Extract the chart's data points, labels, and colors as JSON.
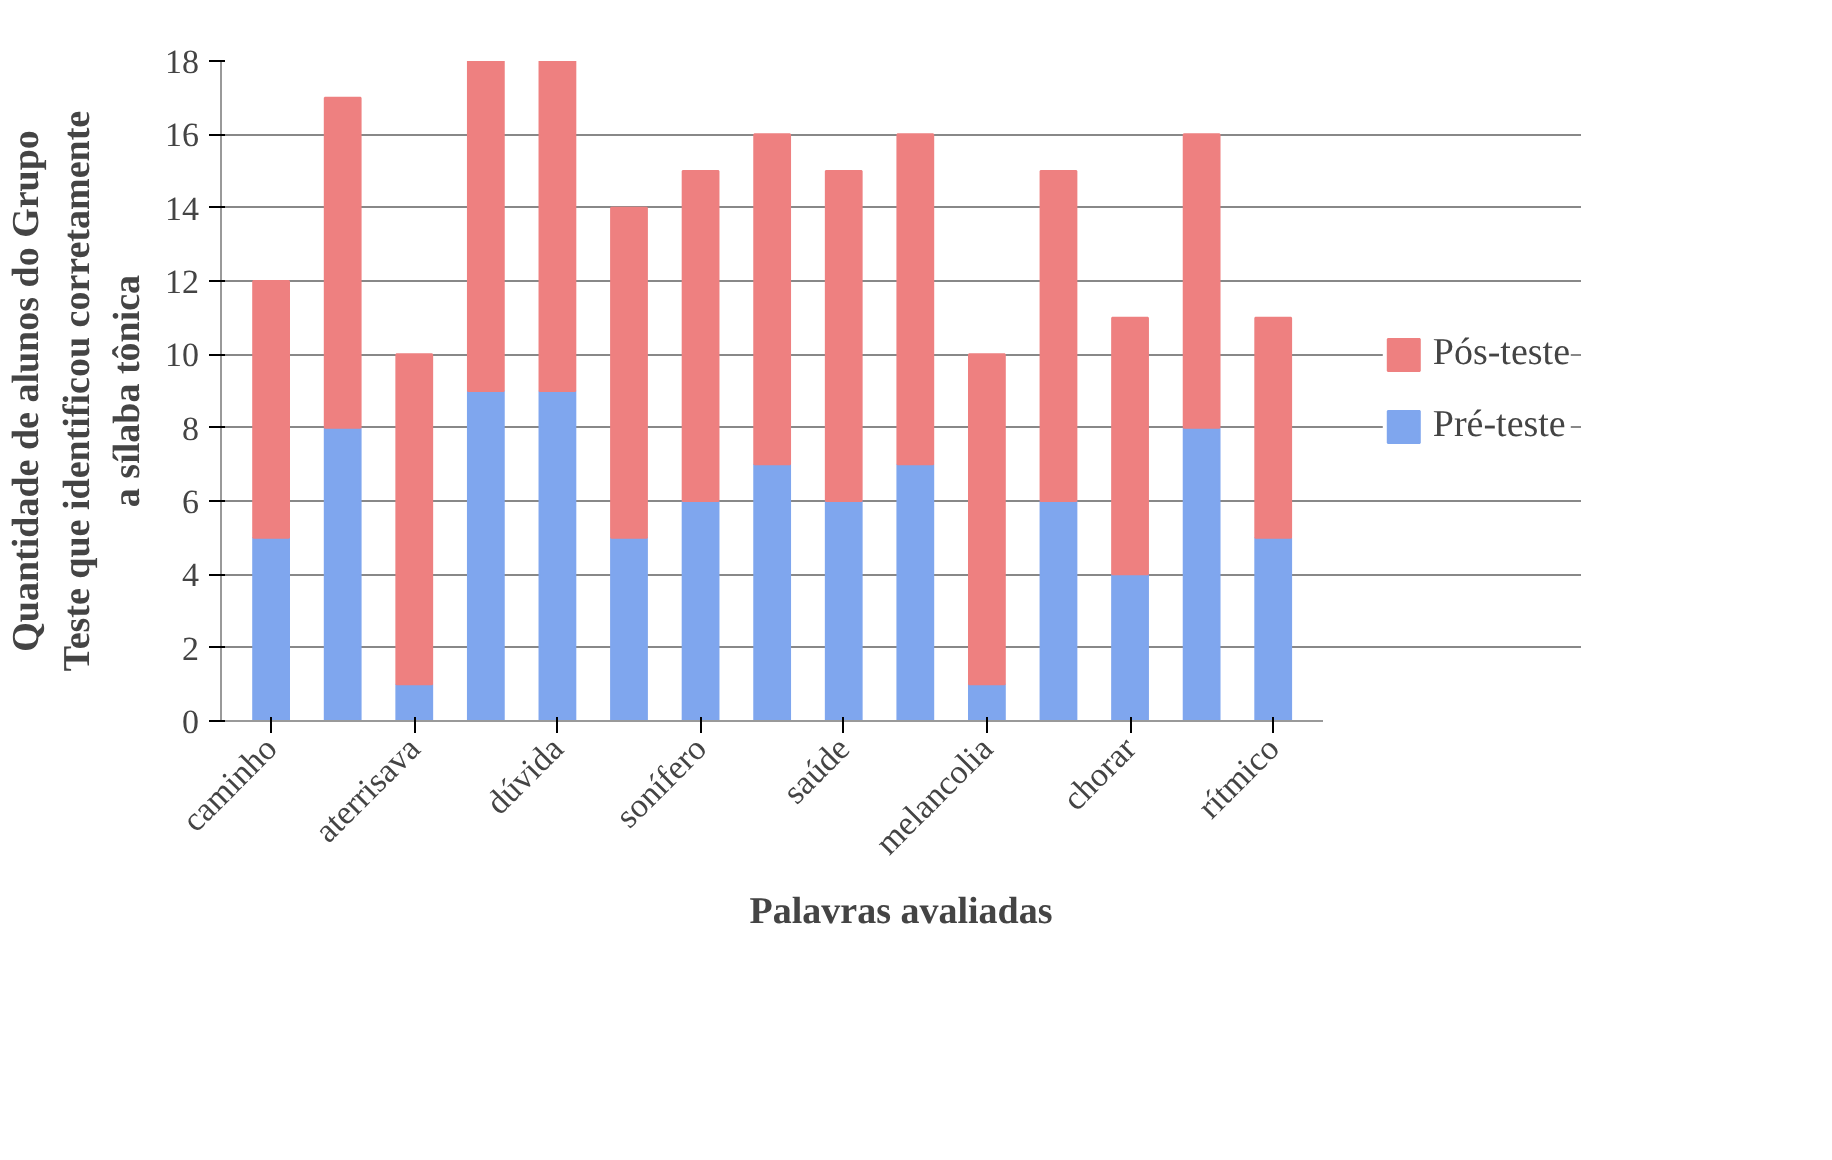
{
  "chart_data": {
    "type": "bar",
    "stacked": true,
    "xlabel": "Palavras avaliadas",
    "ylabel": "Quantidade de alunos do Grupo\nTeste que identificou corretamente\na sílaba tônica",
    "categories": [
      "caminho",
      null,
      "aterrisava",
      null,
      "dúvida",
      null,
      "sonífero",
      null,
      "saúde",
      null,
      "melancolia",
      null,
      "chorar",
      null,
      "rítmico"
    ],
    "series": [
      {
        "name": "Pré-teste",
        "color": "#7fa6ee",
        "values": [
          5,
          8,
          1,
          9,
          9,
          5,
          6,
          7,
          6,
          7,
          1,
          6,
          4,
          8,
          5
        ]
      },
      {
        "name": "Pós-teste",
        "color": "#ee8080",
        "values": [
          7,
          9,
          9,
          9,
          9,
          9,
          9,
          9,
          9,
          9,
          9,
          9,
          7,
          8,
          6
        ]
      }
    ],
    "ylim": [
      0,
      18
    ],
    "yticks": [
      0,
      2,
      4,
      6,
      8,
      10,
      12,
      14,
      16,
      18
    ],
    "grid": "y",
    "legend": "right"
  }
}
